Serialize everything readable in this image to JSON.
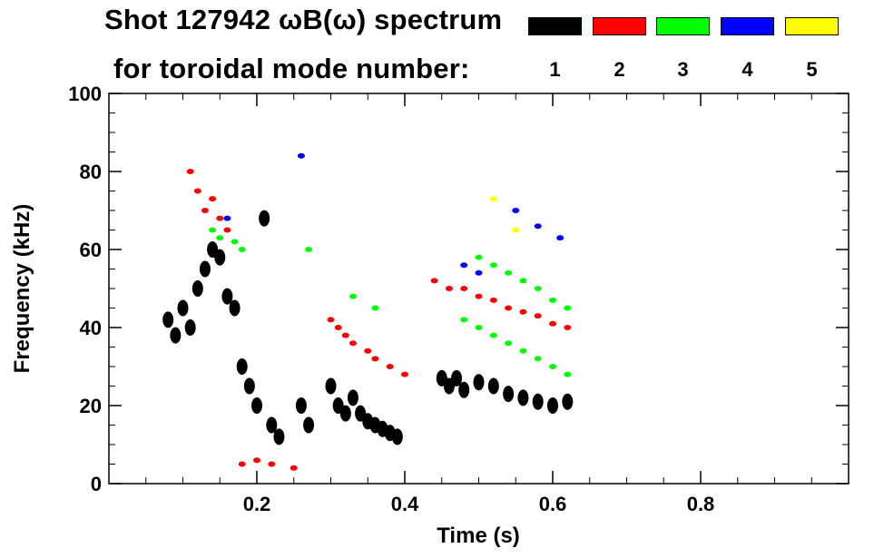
{
  "chart_data": {
    "type": "scatter",
    "title": "Shot 127942 ωB(ω) spectrum",
    "subtitle": "for toroidal mode number:",
    "xlabel": "Time (s)",
    "ylabel": "Frequency (kHz)",
    "xlim": [
      0.0,
      1.0
    ],
    "ylim": [
      0,
      100
    ],
    "x_ticks": [
      0.2,
      0.4,
      0.6,
      0.8
    ],
    "x_tick_labels": [
      "0.2",
      "0.4",
      "0.6",
      "0.8"
    ],
    "y_ticks": [
      0,
      20,
      40,
      60,
      80,
      100
    ],
    "y_tick_labels": [
      "0",
      "20",
      "40",
      "60",
      "80",
      "100"
    ],
    "legend": [
      {
        "label": "1",
        "color": "#000000"
      },
      {
        "label": "2",
        "color": "#ff0000"
      },
      {
        "label": "3",
        "color": "#00ff00"
      },
      {
        "label": "4",
        "color": "#0000ff"
      },
      {
        "label": "5",
        "color": "#ffff00"
      }
    ],
    "series": [
      {
        "mode": 1,
        "color": "#000000",
        "points": [
          [
            0.08,
            42
          ],
          [
            0.09,
            38
          ],
          [
            0.1,
            45
          ],
          [
            0.11,
            40
          ],
          [
            0.12,
            50
          ],
          [
            0.13,
            55
          ],
          [
            0.14,
            60
          ],
          [
            0.15,
            58
          ],
          [
            0.16,
            48
          ],
          [
            0.17,
            45
          ],
          [
            0.18,
            30
          ],
          [
            0.19,
            25
          ],
          [
            0.2,
            20
          ],
          [
            0.21,
            68
          ],
          [
            0.22,
            15
          ],
          [
            0.23,
            12
          ],
          [
            0.26,
            20
          ],
          [
            0.27,
            15
          ],
          [
            0.3,
            25
          ],
          [
            0.31,
            20
          ],
          [
            0.32,
            18
          ],
          [
            0.33,
            22
          ],
          [
            0.34,
            18
          ],
          [
            0.35,
            16
          ],
          [
            0.36,
            15
          ],
          [
            0.37,
            14
          ],
          [
            0.38,
            13
          ],
          [
            0.39,
            12
          ],
          [
            0.45,
            27
          ],
          [
            0.46,
            25
          ],
          [
            0.47,
            27
          ],
          [
            0.48,
            24
          ],
          [
            0.5,
            26
          ],
          [
            0.52,
            25
          ],
          [
            0.54,
            23
          ],
          [
            0.56,
            22
          ],
          [
            0.58,
            21
          ],
          [
            0.6,
            20
          ],
          [
            0.62,
            21
          ]
        ]
      },
      {
        "mode": 2,
        "color": "#ff0000",
        "points": [
          [
            0.11,
            80
          ],
          [
            0.12,
            75
          ],
          [
            0.13,
            70
          ],
          [
            0.14,
            73
          ],
          [
            0.15,
            68
          ],
          [
            0.16,
            65
          ],
          [
            0.18,
            5
          ],
          [
            0.2,
            6
          ],
          [
            0.22,
            5
          ],
          [
            0.25,
            4
          ],
          [
            0.3,
            42
          ],
          [
            0.31,
            40
          ],
          [
            0.32,
            38
          ],
          [
            0.33,
            36
          ],
          [
            0.35,
            34
          ],
          [
            0.36,
            32
          ],
          [
            0.38,
            30
          ],
          [
            0.4,
            28
          ],
          [
            0.44,
            52
          ],
          [
            0.46,
            50
          ],
          [
            0.48,
            50
          ],
          [
            0.5,
            48
          ],
          [
            0.52,
            47
          ],
          [
            0.54,
            45
          ],
          [
            0.56,
            44
          ],
          [
            0.58,
            43
          ],
          [
            0.6,
            41
          ],
          [
            0.62,
            40
          ]
        ]
      },
      {
        "mode": 3,
        "color": "#00ff00",
        "points": [
          [
            0.14,
            65
          ],
          [
            0.15,
            63
          ],
          [
            0.17,
            62
          ],
          [
            0.18,
            60
          ],
          [
            0.27,
            60
          ],
          [
            0.33,
            48
          ],
          [
            0.36,
            45
          ],
          [
            0.48,
            42
          ],
          [
            0.5,
            40
          ],
          [
            0.52,
            38
          ],
          [
            0.54,
            36
          ],
          [
            0.56,
            34
          ],
          [
            0.58,
            32
          ],
          [
            0.6,
            30
          ],
          [
            0.62,
            28
          ],
          [
            0.5,
            58
          ],
          [
            0.52,
            56
          ],
          [
            0.54,
            54
          ],
          [
            0.56,
            52
          ],
          [
            0.58,
            50
          ],
          [
            0.6,
            47
          ],
          [
            0.62,
            45
          ]
        ]
      },
      {
        "mode": 4,
        "color": "#0000ff",
        "points": [
          [
            0.16,
            68
          ],
          [
            0.26,
            84
          ],
          [
            0.48,
            56
          ],
          [
            0.5,
            54
          ],
          [
            0.55,
            70
          ],
          [
            0.58,
            66
          ],
          [
            0.61,
            63
          ]
        ]
      },
      {
        "mode": 5,
        "color": "#ffff00",
        "points": [
          [
            0.52,
            73
          ],
          [
            0.55,
            65
          ]
        ]
      }
    ]
  }
}
